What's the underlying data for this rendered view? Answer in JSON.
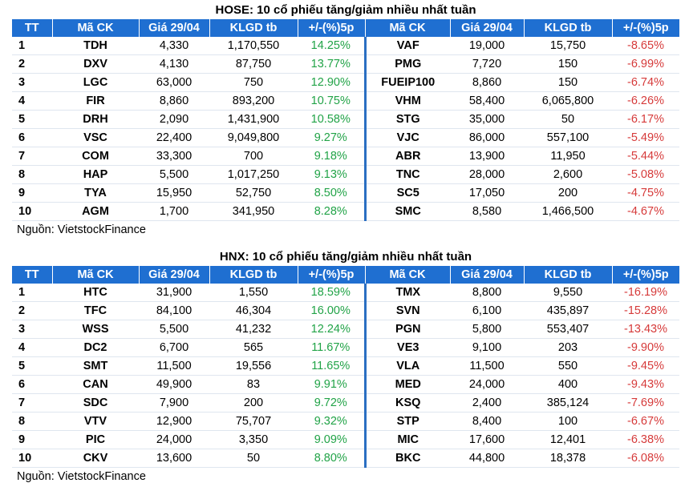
{
  "headers": [
    "TT",
    "Mã CK",
    "Giá 29/04",
    "KLGD tb",
    "+/-(%)5p",
    "Mã CK",
    "Giá 29/04",
    "KLGD tb",
    "+/-(%)5p"
  ],
  "source_text": "Nguồn: VietstockFinance",
  "hose": {
    "title": "HOSE: 10 cổ phiếu tăng/giảm nhiều nhất tuần",
    "rows": [
      {
        "tt": "1",
        "up_sym": "TDH",
        "up_price": "4,330",
        "up_vol": "1,170,550",
        "up_pct": "14.25%",
        "dn_sym": "VAF",
        "dn_price": "19,000",
        "dn_vol": "15,750",
        "dn_pct": "-8.65%"
      },
      {
        "tt": "2",
        "up_sym": "DXV",
        "up_price": "4,130",
        "up_vol": "87,750",
        "up_pct": "13.77%",
        "dn_sym": "PMG",
        "dn_price": "7,720",
        "dn_vol": "150",
        "dn_pct": "-6.99%"
      },
      {
        "tt": "3",
        "up_sym": "LGC",
        "up_price": "63,000",
        "up_vol": "750",
        "up_pct": "12.90%",
        "dn_sym": "FUEIP100",
        "dn_price": "8,860",
        "dn_vol": "150",
        "dn_pct": "-6.74%"
      },
      {
        "tt": "4",
        "up_sym": "FIR",
        "up_price": "8,860",
        "up_vol": "893,200",
        "up_pct": "10.75%",
        "dn_sym": "VHM",
        "dn_price": "58,400",
        "dn_vol": "6,065,800",
        "dn_pct": "-6.26%"
      },
      {
        "tt": "5",
        "up_sym": "DRH",
        "up_price": "2,090",
        "up_vol": "1,431,900",
        "up_pct": "10.58%",
        "dn_sym": "STG",
        "dn_price": "35,000",
        "dn_vol": "50",
        "dn_pct": "-6.17%"
      },
      {
        "tt": "6",
        "up_sym": "VSC",
        "up_price": "22,400",
        "up_vol": "9,049,800",
        "up_pct": "9.27%",
        "dn_sym": "VJC",
        "dn_price": "86,000",
        "dn_vol": "557,100",
        "dn_pct": "-5.49%"
      },
      {
        "tt": "7",
        "up_sym": "COM",
        "up_price": "33,300",
        "up_vol": "700",
        "up_pct": "9.18%",
        "dn_sym": "ABR",
        "dn_price": "13,900",
        "dn_vol": "11,950",
        "dn_pct": "-5.44%"
      },
      {
        "tt": "8",
        "up_sym": "HAP",
        "up_price": "5,500",
        "up_vol": "1,017,250",
        "up_pct": "9.13%",
        "dn_sym": "TNC",
        "dn_price": "28,000",
        "dn_vol": "2,600",
        "dn_pct": "-5.08%"
      },
      {
        "tt": "9",
        "up_sym": "TYA",
        "up_price": "15,950",
        "up_vol": "52,750",
        "up_pct": "8.50%",
        "dn_sym": "SC5",
        "dn_price": "17,050",
        "dn_vol": "200",
        "dn_pct": "-4.75%"
      },
      {
        "tt": "10",
        "up_sym": "AGM",
        "up_price": "1,700",
        "up_vol": "341,950",
        "up_pct": "8.28%",
        "dn_sym": "SMC",
        "dn_price": "8,580",
        "dn_vol": "1,466,500",
        "dn_pct": "-4.67%"
      }
    ]
  },
  "hnx": {
    "title": "HNX: 10 cổ phiếu tăng/giảm nhiều nhất tuần",
    "rows": [
      {
        "tt": "1",
        "up_sym": "HTC",
        "up_price": "31,900",
        "up_vol": "1,550",
        "up_pct": "18.59%",
        "dn_sym": "TMX",
        "dn_price": "8,800",
        "dn_vol": "9,550",
        "dn_pct": "-16.19%"
      },
      {
        "tt": "2",
        "up_sym": "TFC",
        "up_price": "84,100",
        "up_vol": "46,304",
        "up_pct": "16.00%",
        "dn_sym": "SVN",
        "dn_price": "6,100",
        "dn_vol": "435,897",
        "dn_pct": "-15.28%"
      },
      {
        "tt": "3",
        "up_sym": "WSS",
        "up_price": "5,500",
        "up_vol": "41,232",
        "up_pct": "12.24%",
        "dn_sym": "PGN",
        "dn_price": "5,800",
        "dn_vol": "553,407",
        "dn_pct": "-13.43%"
      },
      {
        "tt": "4",
        "up_sym": "DC2",
        "up_price": "6,700",
        "up_vol": "565",
        "up_pct": "11.67%",
        "dn_sym": "VE3",
        "dn_price": "9,100",
        "dn_vol": "203",
        "dn_pct": "-9.90%"
      },
      {
        "tt": "5",
        "up_sym": "SMT",
        "up_price": "11,500",
        "up_vol": "19,556",
        "up_pct": "11.65%",
        "dn_sym": "VLA",
        "dn_price": "11,500",
        "dn_vol": "550",
        "dn_pct": "-9.45%"
      },
      {
        "tt": "6",
        "up_sym": "CAN",
        "up_price": "49,900",
        "up_vol": "83",
        "up_pct": "9.91%",
        "dn_sym": "MED",
        "dn_price": "24,000",
        "dn_vol": "400",
        "dn_pct": "-9.43%"
      },
      {
        "tt": "7",
        "up_sym": "SDC",
        "up_price": "7,900",
        "up_vol": "200",
        "up_pct": "9.72%",
        "dn_sym": "KSQ",
        "dn_price": "2,400",
        "dn_vol": "385,124",
        "dn_pct": "-7.69%"
      },
      {
        "tt": "8",
        "up_sym": "VTV",
        "up_price": "12,900",
        "up_vol": "75,707",
        "up_pct": "9.32%",
        "dn_sym": "STP",
        "dn_price": "8,400",
        "dn_vol": "100",
        "dn_pct": "-6.67%"
      },
      {
        "tt": "9",
        "up_sym": "PIC",
        "up_price": "24,000",
        "up_vol": "3,350",
        "up_pct": "9.09%",
        "dn_sym": "MIC",
        "dn_price": "17,600",
        "dn_vol": "12,401",
        "dn_pct": "-6.38%"
      },
      {
        "tt": "10",
        "up_sym": "CKV",
        "up_price": "13,600",
        "up_vol": "50",
        "up_pct": "8.80%",
        "dn_sym": "BKC",
        "dn_price": "44,800",
        "dn_vol": "18,378",
        "dn_pct": "-6.08%"
      }
    ]
  },
  "colors": {
    "header_bg": "#1f6fd1",
    "positive": "#21a347",
    "negative": "#d63a3a"
  }
}
